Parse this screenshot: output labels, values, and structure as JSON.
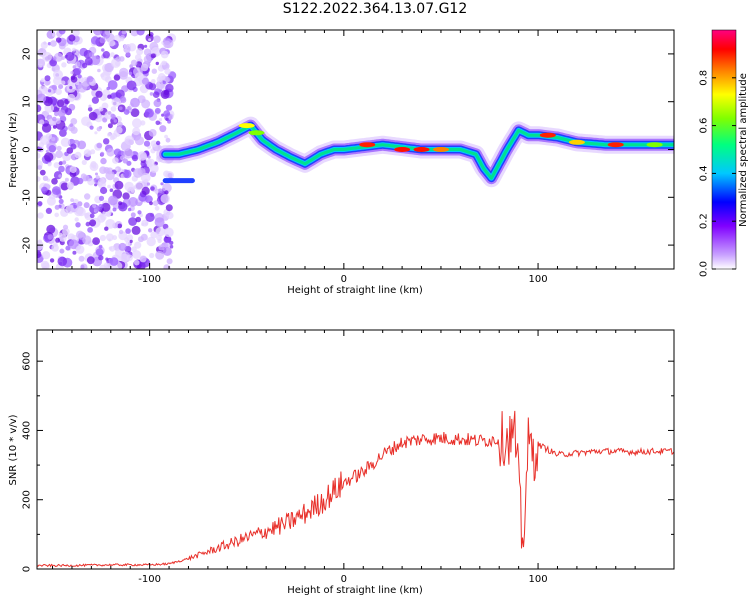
{
  "title": "S122.2022.364.13.07.G12",
  "chart_data": [
    {
      "type": "heatmap",
      "title": "S122.2022.364.13.07.G12",
      "xlabel": "Height of straight line (km)",
      "ylabel": "Frequency (Hz)",
      "xlim": [
        -158,
        170
      ],
      "ylim": [
        -25,
        25
      ],
      "x_ticks": [
        -100,
        0,
        100
      ],
      "y_ticks": [
        -20,
        -10,
        0,
        10,
        20
      ],
      "colorbar": {
        "label": "Normalized spectral amplitude",
        "range": [
          0,
          1
        ],
        "ticks": [
          0.0,
          0.2,
          0.4,
          0.6,
          0.8
        ],
        "colors": [
          "#ffffff",
          "#c8a0ff",
          "#8000ff",
          "#0000ff",
          "#00c8ff",
          "#00ff80",
          "#80ff00",
          "#ffff00",
          "#ff8000",
          "#ff0000",
          "#ff0080"
        ]
      },
      "ridge": {
        "x": [
          -92,
          -85,
          -75,
          -65,
          -55,
          -48,
          -42,
          -35,
          -28,
          -20,
          -12,
          -5,
          0,
          10,
          20,
          40,
          60,
          68,
          72,
          76,
          80,
          84,
          90,
          95,
          100,
          110,
          120,
          135,
          150,
          165,
          170
        ],
        "y": [
          -1,
          -1,
          0,
          1.5,
          3.5,
          5,
          2,
          0,
          -1.5,
          -3,
          -1,
          0,
          0,
          0.5,
          1,
          0,
          0,
          -1,
          -4,
          -6,
          -3,
          0,
          4,
          3,
          3,
          2.5,
          1.5,
          1,
          1,
          1,
          1
        ]
      },
      "noise_region_x": [
        -158,
        -88
      ]
    },
    {
      "type": "line",
      "xlabel": "Height of straight line (km)",
      "ylabel": "SNR (10 * v/v)",
      "xlim": [
        -158,
        170
      ],
      "ylim": [
        0,
        690
      ],
      "x_ticks": [
        -100,
        0,
        100
      ],
      "y_ticks": [
        0,
        200,
        400,
        600
      ],
      "color": "#e8302a",
      "series": [
        {
          "x": [
            -158,
            -140,
            -120,
            -100,
            -90,
            -80,
            -70,
            -60,
            -50,
            -40,
            -30,
            -20,
            -10,
            0,
            10,
            20,
            30,
            40,
            50,
            60,
            70,
            80,
            85,
            88,
            90,
            92,
            95,
            98,
            100,
            105,
            110,
            120,
            130,
            140,
            150,
            160,
            170
          ],
          "y": [
            10,
            10,
            12,
            12,
            15,
            30,
            50,
            70,
            90,
            110,
            130,
            160,
            200,
            250,
            280,
            330,
            365,
            375,
            378,
            375,
            370,
            375,
            380,
            390,
            250,
            60,
            360,
            330,
            360,
            345,
            330,
            335,
            340,
            340,
            338,
            340,
            340
          ]
        }
      ]
    }
  ]
}
